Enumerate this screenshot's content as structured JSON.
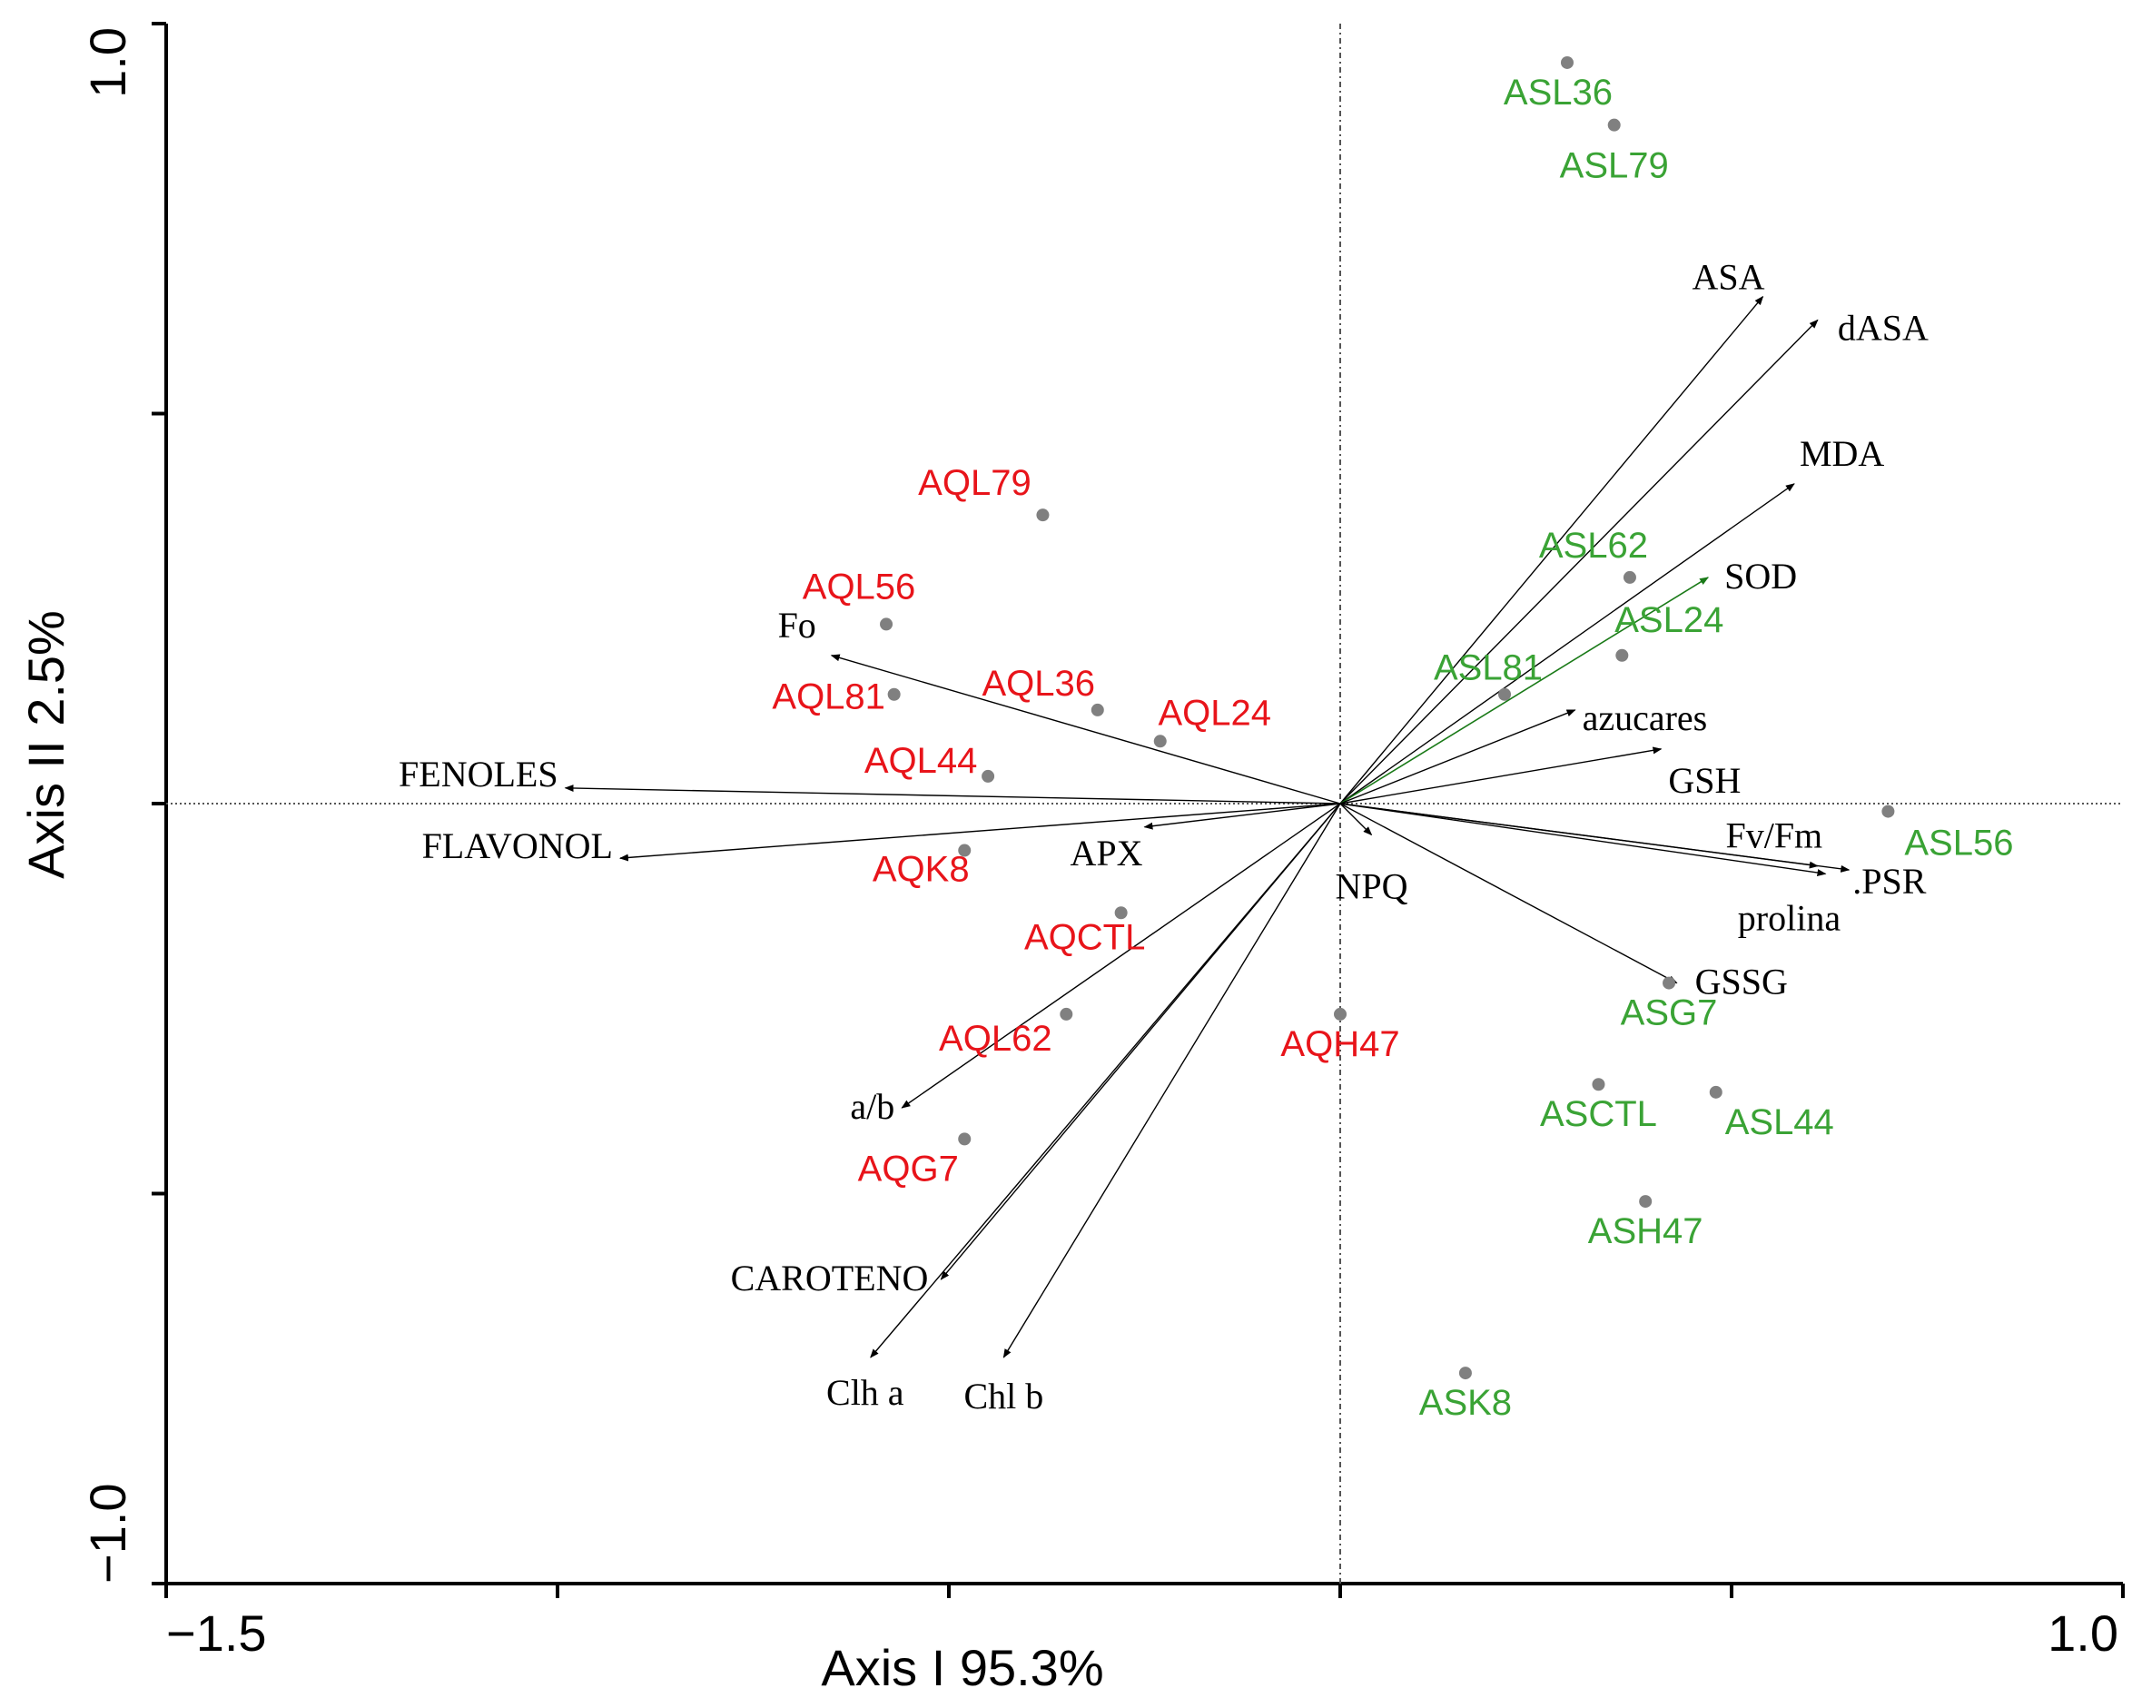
{
  "chart_data": {
    "type": "scatter",
    "subtype": "PCA biplot",
    "xlabel": "Axis I 95.3%",
    "ylabel": "Axis II 2.5%",
    "xlim": [
      -1.5,
      1.0
    ],
    "ylim": [
      -1.0,
      1.0
    ],
    "x_tick_labels": [
      {
        "value": -1.5,
        "label": "−1.5"
      },
      {
        "value": 1.0,
        "label": "1.0"
      }
    ],
    "y_tick_labels": [
      {
        "value": 1.0,
        "label": "1.0"
      },
      {
        "value": -1.0,
        "label": "−1.0"
      }
    ],
    "x_ticks": [
      -1.5,
      -1.0,
      -0.5,
      0.0,
      0.5,
      1.0
    ],
    "y_ticks": [
      -1.0,
      -0.5,
      0.0,
      0.5,
      1.0
    ],
    "colors": {
      "group_aq": "#e8141a",
      "group_as": "#3aa335",
      "point": "#808080",
      "vector": "#000000",
      "sod_vector": "#3aa335",
      "axis": "#000000",
      "zero_line": "#555555"
    },
    "vectors": [
      {
        "name": "ASA",
        "x": 0.54,
        "y": 0.65
      },
      {
        "name": "dASA",
        "x": 0.61,
        "y": 0.62
      },
      {
        "name": "MDA",
        "x": 0.58,
        "y": 0.41
      },
      {
        "name": "SOD",
        "x": 0.47,
        "y": 0.29,
        "color": "sod_vector"
      },
      {
        "name": "azucares",
        "x": 0.3,
        "y": 0.12
      },
      {
        "name": "GSH",
        "x": 0.41,
        "y": 0.07
      },
      {
        "name": "Fv/Fm",
        "x": 0.61,
        "y": -0.08
      },
      {
        "name": ".PSR",
        "x": 0.65,
        "y": -0.085
      },
      {
        "name": "prolina",
        "x": 0.62,
        "y": -0.09
      },
      {
        "name": "GSSG",
        "x": 0.43,
        "y": -0.23
      },
      {
        "name": "NPQ",
        "x": 0.04,
        "y": -0.04
      },
      {
        "name": "APX",
        "x": -0.25,
        "y": -0.03
      },
      {
        "name": "Fo",
        "x": -0.65,
        "y": 0.19
      },
      {
        "name": "FENOLES",
        "x": -0.99,
        "y": 0.02
      },
      {
        "name": "FLAVONOL",
        "x": -0.92,
        "y": -0.07
      },
      {
        "name": "a/b",
        "x": -0.56,
        "y": -0.39
      },
      {
        "name": "CAROTENO",
        "x": -0.51,
        "y": -0.61
      },
      {
        "name": "Clh a",
        "x": -0.6,
        "y": -0.71
      },
      {
        "name": "Chl b",
        "x": -0.43,
        "y": -0.71
      }
    ],
    "series": [
      {
        "name": "AQ",
        "color": "group_aq",
        "points": [
          {
            "label": "AQL79",
            "x": -0.38,
            "y": 0.37
          },
          {
            "label": "AQL56",
            "x": -0.58,
            "y": 0.23
          },
          {
            "label": "AQL81",
            "x": -0.57,
            "y": 0.14
          },
          {
            "label": "AQL36",
            "x": -0.31,
            "y": 0.12
          },
          {
            "label": "AQL24",
            "x": -0.23,
            "y": 0.08
          },
          {
            "label": "AQL44",
            "x": -0.45,
            "y": 0.035
          },
          {
            "label": "AQK8",
            "x": -0.48,
            "y": -0.06
          },
          {
            "label": "AQCTL",
            "x": -0.28,
            "y": -0.14
          },
          {
            "label": "AQL62",
            "x": -0.35,
            "y": -0.27
          },
          {
            "label": "AQG7",
            "x": -0.48,
            "y": -0.43
          },
          {
            "label": "AQH47",
            "x": 0.0,
            "y": -0.27
          }
        ]
      },
      {
        "name": "AS",
        "color": "group_as",
        "points": [
          {
            "label": "ASL36",
            "x": 0.29,
            "y": 0.95
          },
          {
            "label": "ASL79",
            "x": 0.35,
            "y": 0.87
          },
          {
            "label": "ASL62",
            "x": 0.37,
            "y": 0.29
          },
          {
            "label": "ASL24",
            "x": 0.36,
            "y": 0.19
          },
          {
            "label": "ASL81",
            "x": 0.21,
            "y": 0.14
          },
          {
            "label": "ASL56",
            "x": 0.7,
            "y": -0.01
          },
          {
            "label": "ASG7",
            "x": 0.42,
            "y": -0.23
          },
          {
            "label": "ASCTL",
            "x": 0.33,
            "y": -0.36
          },
          {
            "label": "ASL44",
            "x": 0.48,
            "y": -0.37
          },
          {
            "label": "ASH47",
            "x": 0.39,
            "y": -0.51
          },
          {
            "label": "ASK8",
            "x": 0.16,
            "y": -0.73
          }
        ]
      }
    ]
  }
}
